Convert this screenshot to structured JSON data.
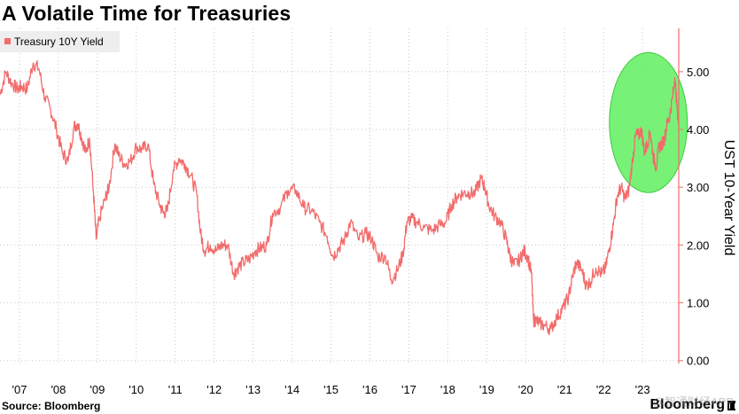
{
  "chart_data": {
    "type": "line",
    "title": "A Volatile Time for Treasuries",
    "xlabel": "",
    "ylabel": "UST 10-Year Yield",
    "ylim": [
      -0.05,
      5.75
    ],
    "xlim": [
      2006.5,
      2023.93
    ],
    "y_ticks": [
      "0.00",
      "1.00",
      "2.00",
      "3.00",
      "4.00",
      "5.00"
    ],
    "y_tick_values": [
      0,
      1,
      2,
      3,
      4,
      5
    ],
    "x_ticks": [
      "'07",
      "'08",
      "'09",
      "'10",
      "'11",
      "'12",
      "'13",
      "'14",
      "'15",
      "'16",
      "'17",
      "'18",
      "'19",
      "'20",
      "'21",
      "'22",
      "'23"
    ],
    "x_tick_values": [
      2007,
      2008,
      2009,
      2010,
      2011,
      2012,
      2013,
      2014,
      2015,
      2016,
      2017,
      2018,
      2019,
      2020,
      2021,
      2022,
      2023
    ],
    "legend_position": "top-left",
    "grid": true,
    "series": [
      {
        "name": "Treasury 10Y Yield",
        "color": "#f26b6b",
        "x": [
          2006.5,
          2006.65,
          2006.8,
          2006.95,
          2007.05,
          2007.2,
          2007.35,
          2007.5,
          2007.65,
          2007.8,
          2007.95,
          2008.1,
          2008.25,
          2008.4,
          2008.5,
          2008.6,
          2008.7,
          2008.8,
          2008.9,
          2008.97,
          2009.05,
          2009.2,
          2009.3,
          2009.45,
          2009.55,
          2009.7,
          2009.85,
          2010.0,
          2010.15,
          2010.3,
          2010.45,
          2010.6,
          2010.7,
          2010.8,
          2010.95,
          2011.1,
          2011.25,
          2011.4,
          2011.55,
          2011.65,
          2011.75,
          2011.9,
          2012.05,
          2012.2,
          2012.35,
          2012.5,
          2012.6,
          2012.75,
          2012.9,
          2013.05,
          2013.2,
          2013.35,
          2013.5,
          2013.7,
          2013.9,
          2014.1,
          2014.3,
          2014.5,
          2014.7,
          2014.9,
          2015.05,
          2015.2,
          2015.35,
          2015.5,
          2015.7,
          2015.9,
          2016.05,
          2016.2,
          2016.4,
          2016.55,
          2016.7,
          2016.85,
          2016.95,
          2017.05,
          2017.2,
          2017.4,
          2017.6,
          2017.8,
          2017.95,
          2018.1,
          2018.25,
          2018.4,
          2018.55,
          2018.7,
          2018.85,
          2018.95,
          2019.05,
          2019.2,
          2019.35,
          2019.5,
          2019.6,
          2019.7,
          2019.85,
          2019.95,
          2020.05,
          2020.15,
          2020.2,
          2020.25,
          2020.35,
          2020.5,
          2020.65,
          2020.8,
          2020.95,
          2021.1,
          2021.2,
          2021.3,
          2021.45,
          2021.55,
          2021.65,
          2021.8,
          2021.95,
          2022.05,
          2022.15,
          2022.25,
          2022.35,
          2022.45,
          2022.55,
          2022.65,
          2022.75,
          2022.82,
          2022.9,
          2022.97,
          2023.05,
          2023.12,
          2023.2,
          2023.27,
          2023.35,
          2023.42,
          2023.5,
          2023.57,
          2023.63,
          2023.7,
          2023.77,
          2023.83,
          2023.88,
          2023.93
        ],
        "values": [
          4.6,
          5.0,
          4.8,
          4.7,
          4.75,
          4.7,
          5.15,
          5.05,
          4.55,
          4.35,
          4.0,
          3.6,
          3.45,
          4.05,
          4.1,
          3.85,
          3.6,
          3.85,
          2.9,
          2.1,
          2.45,
          2.8,
          3.0,
          3.75,
          3.55,
          3.4,
          3.45,
          3.7,
          3.65,
          3.75,
          3.05,
          2.7,
          2.55,
          2.6,
          3.3,
          3.5,
          3.4,
          3.2,
          2.9,
          2.2,
          1.9,
          2.0,
          1.9,
          2.0,
          2.0,
          1.5,
          1.6,
          1.7,
          1.75,
          1.9,
          1.95,
          2.0,
          2.55,
          2.65,
          2.95,
          2.95,
          2.65,
          2.6,
          2.4,
          2.15,
          1.8,
          1.95,
          2.1,
          2.4,
          2.1,
          2.2,
          2.1,
          1.8,
          1.8,
          1.4,
          1.55,
          1.85,
          2.4,
          2.45,
          2.4,
          2.3,
          2.25,
          2.35,
          2.4,
          2.7,
          2.85,
          2.9,
          2.9,
          2.9,
          3.15,
          3.0,
          2.7,
          2.5,
          2.4,
          2.1,
          1.8,
          1.65,
          1.75,
          1.9,
          1.8,
          1.5,
          0.7,
          0.7,
          0.65,
          0.6,
          0.55,
          0.75,
          0.9,
          1.1,
          1.45,
          1.7,
          1.55,
          1.3,
          1.35,
          1.6,
          1.5,
          1.6,
          1.95,
          2.35,
          2.85,
          3.0,
          2.8,
          2.95,
          3.5,
          3.9,
          3.9,
          4.0,
          3.6,
          3.75,
          3.95,
          3.55,
          3.35,
          3.7,
          3.75,
          3.85,
          4.1,
          4.25,
          4.55,
          4.9,
          4.45,
          4.05
        ]
      }
    ],
    "annotations": [
      "highlight ellipse around 2022-2023 yield peak"
    ],
    "highlight_color": "#5ff05f"
  },
  "source_text": "Source: Bloomberg",
  "brand_text": "Bloomberg",
  "watermark_text": "@智通财经APP"
}
